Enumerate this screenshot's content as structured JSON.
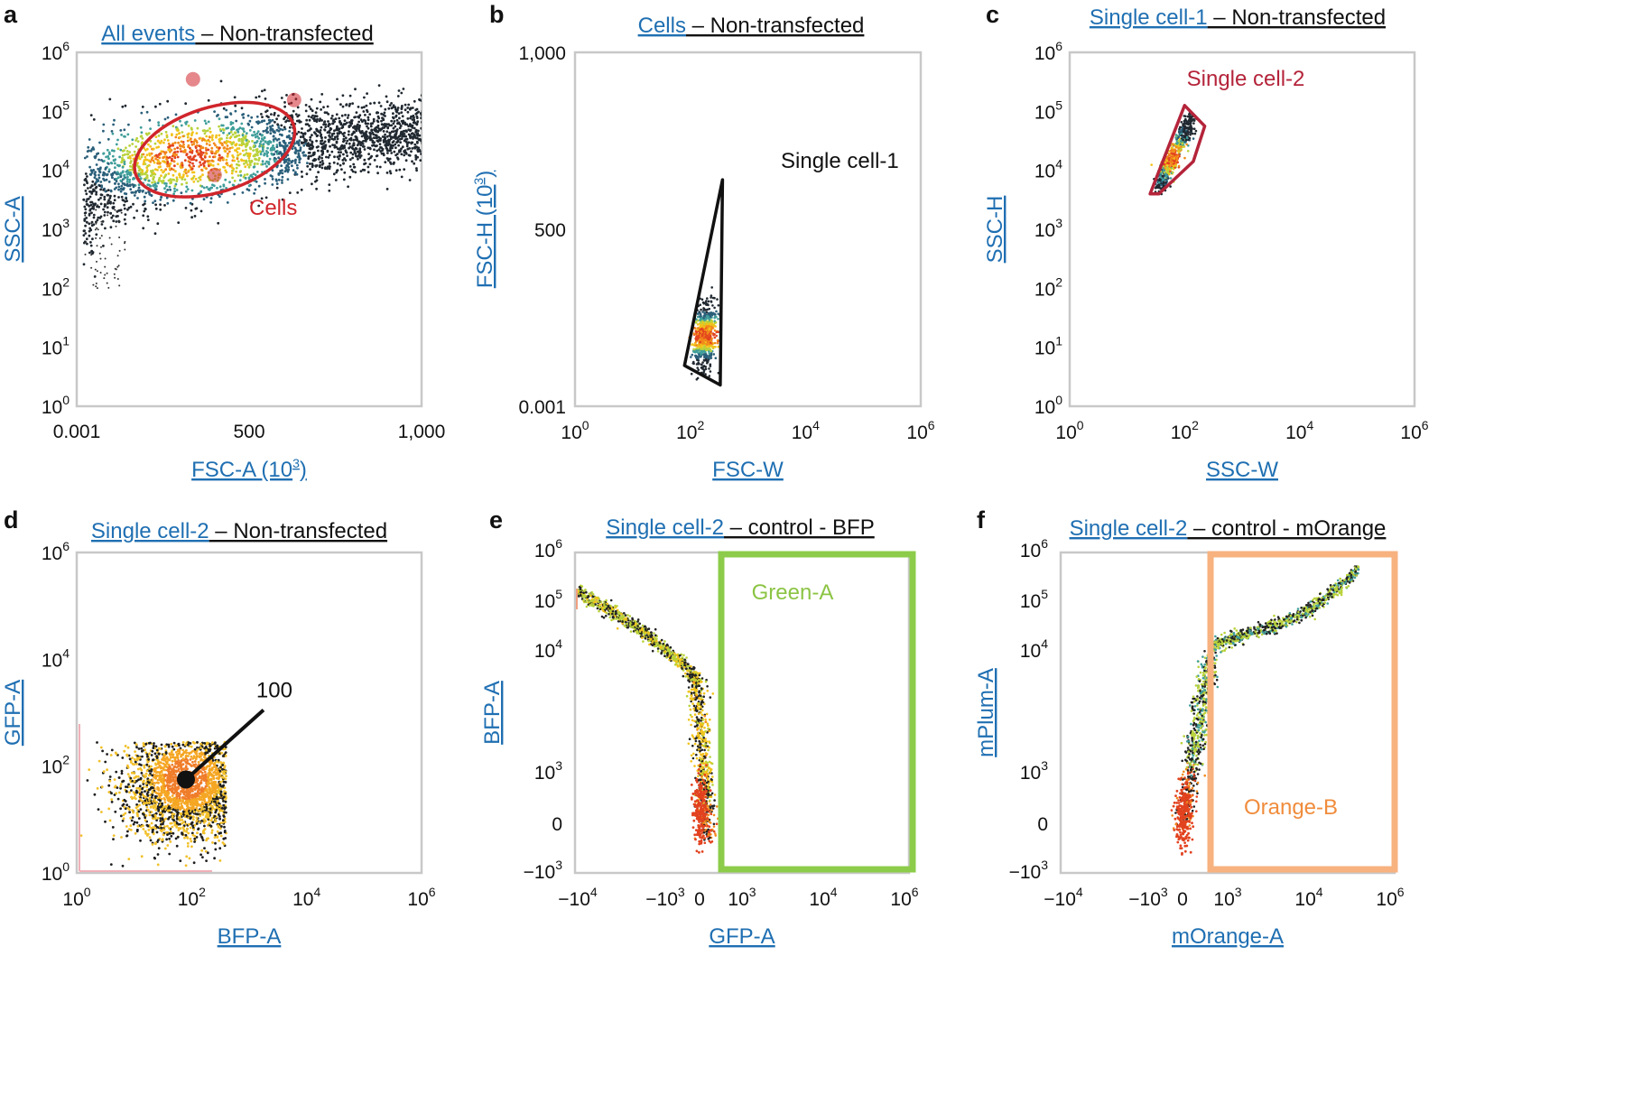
{
  "colors": {
    "axis_label": "#1f6fb2",
    "gate_red": "#d0252b",
    "gate_crimson": "#b4243a",
    "gate_green": "#8ccc4a",
    "gate_orange": "#f7b27f",
    "orange_text": "#f08c3c",
    "green_text": "#8cc444"
  },
  "chart_data": [
    {
      "panel": "a",
      "type": "scatter",
      "title_gate": "All events",
      "title_rest": "– Non-transfected",
      "xlabel": "FSC-A (10",
      "xlabel_sup": "3",
      "xlabel_end": ")",
      "ylabel": "SSC-A",
      "xscale": "linear",
      "xlim": [
        0,
        1000
      ],
      "x_ticks": [
        {
          "v": 0,
          "label": "0.001"
        },
        {
          "v": 500,
          "label": "500"
        },
        {
          "v": 1000,
          "label": "1,000"
        }
      ],
      "yscale": "log",
      "ylim": [
        0,
        6
      ],
      "y_ticks": [
        {
          "v": 0,
          "base": "10",
          "exp": "0"
        },
        {
          "v": 1,
          "base": "10",
          "exp": "1"
        },
        {
          "v": 2,
          "base": "10",
          "exp": "2"
        },
        {
          "v": 3,
          "base": "10",
          "exp": "3"
        },
        {
          "v": 4,
          "base": "10",
          "exp": "4"
        },
        {
          "v": 5,
          "base": "10",
          "exp": "5"
        },
        {
          "v": 6,
          "base": "10",
          "exp": "6"
        }
      ],
      "gate": {
        "name": "Cells",
        "shape": "ellipse",
        "center": [
          400,
          4.35
        ],
        "semi_axes_data": [
          240,
          0.72
        ],
        "color": "#d0252b"
      },
      "population": "main population curving from ~(40, 3.0) to (1000, 4.8), densest around (350, 4.2)"
    },
    {
      "panel": "b",
      "type": "scatter",
      "title_gate": "Cells",
      "title_rest": "– Non-transfected",
      "xlabel": "FSC-W",
      "xlabel_sup": "",
      "xlabel_end": "",
      "ylabel": "FSC-H (10",
      "ylabel_sup": "3",
      "ylabel_end": ")",
      "xscale": "log",
      "xlim": [
        0,
        6
      ],
      "x_ticks": [
        {
          "v": 0,
          "base": "10",
          "exp": "0"
        },
        {
          "v": 2,
          "base": "10",
          "exp": "2"
        },
        {
          "v": 4,
          "base": "10",
          "exp": "4"
        },
        {
          "v": 6,
          "base": "10",
          "exp": "6"
        }
      ],
      "yscale": "linear",
      "ylim": [
        0,
        1000
      ],
      "y_ticks": [
        {
          "v": 0,
          "label": "0.001"
        },
        {
          "v": 500,
          "label": "500"
        },
        {
          "v": 1000,
          "label": "1,000"
        }
      ],
      "gate": {
        "name": "Single cell-1",
        "shape": "polygon",
        "vertices": [
          [
            2.56,
            640
          ],
          [
            1.9,
            115
          ],
          [
            2.52,
            60
          ]
        ],
        "color": "#111111"
      },
      "population": "narrow cluster near (2.25, 200)"
    },
    {
      "panel": "c",
      "type": "scatter",
      "title_gate": "Single cell-1",
      "title_rest": "– Non-transfected",
      "xlabel": "SSC-W",
      "xlabel_sup": "",
      "xlabel_end": "",
      "ylabel": "SSC-H",
      "xscale": "log",
      "xlim": [
        0,
        6
      ],
      "x_ticks": [
        {
          "v": 0,
          "base": "10",
          "exp": "0"
        },
        {
          "v": 2,
          "base": "10",
          "exp": "2"
        },
        {
          "v": 4,
          "base": "10",
          "exp": "4"
        },
        {
          "v": 6,
          "base": "10",
          "exp": "6"
        }
      ],
      "yscale": "log",
      "ylim": [
        0,
        6
      ],
      "y_ticks": [
        {
          "v": 0,
          "base": "10",
          "exp": "0"
        },
        {
          "v": 1,
          "base": "10",
          "exp": "1"
        },
        {
          "v": 2,
          "base": "10",
          "exp": "2"
        },
        {
          "v": 3,
          "base": "10",
          "exp": "3"
        },
        {
          "v": 4,
          "base": "10",
          "exp": "4"
        },
        {
          "v": 5,
          "base": "10",
          "exp": "5"
        },
        {
          "v": 6,
          "base": "10",
          "exp": "6"
        }
      ],
      "gate": {
        "name": "Single cell-2",
        "shape": "polygon",
        "vertices": [
          [
            1.4,
            3.6
          ],
          [
            2.0,
            5.1
          ],
          [
            2.35,
            4.75
          ],
          [
            2.15,
            4.15
          ],
          [
            1.55,
            3.6
          ]
        ],
        "color": "#b4243a"
      },
      "population": "elongated cluster from (1.5, 3.7) to (2.1, 4.9)"
    },
    {
      "panel": "d",
      "type": "scatter",
      "title_gate": "Single cell-2",
      "title_rest": "– Non-transfected",
      "xlabel": "BFP-A",
      "xlabel_sup": "",
      "xlabel_end": "",
      "ylabel": "GFP-A",
      "xscale": "log",
      "xlim": [
        0,
        6
      ],
      "x_ticks": [
        {
          "v": 0,
          "base": "10",
          "exp": "0"
        },
        {
          "v": 2,
          "base": "10",
          "exp": "2"
        },
        {
          "v": 4,
          "base": "10",
          "exp": "4"
        },
        {
          "v": 6,
          "base": "10",
          "exp": "6"
        }
      ],
      "yscale": "log",
      "ylim": [
        0,
        6
      ],
      "y_ticks": [
        {
          "v": 0,
          "base": "10",
          "exp": "0"
        },
        {
          "v": 2,
          "base": "10",
          "exp": "2"
        },
        {
          "v": 4,
          "base": "10",
          "exp": "4"
        },
        {
          "v": 6,
          "base": "10",
          "exp": "6"
        }
      ],
      "annotation": {
        "text": "100",
        "point": [
          1.9,
          1.75
        ],
        "line_end": [
          3.25,
          3.05
        ]
      },
      "population": "blob spanning x 0-2.5, y 0.2-2.4, densest near (1.9, 1.75)"
    },
    {
      "panel": "e",
      "type": "scatter",
      "title_gate": "Single cell-2",
      "title_rest": "– control - BFP",
      "xlabel": "GFP-A",
      "xlabel_sup": "",
      "xlabel_end": "",
      "ylabel": "BFP-A",
      "xscale": "biexponential",
      "ylim_note": "biexponential",
      "x_ticks": [
        {
          "base": "−10",
          "exp": "4"
        },
        {
          "base": "−10",
          "exp": "3"
        },
        {
          "base": "0",
          "exp": ""
        },
        {
          "base": "10",
          "exp": "3"
        },
        {
          "base": "10",
          "exp": "4"
        },
        {
          "base": "10",
          "exp": "6"
        }
      ],
      "y_ticks": [
        {
          "base": "−10",
          "exp": "3"
        },
        {
          "base": "0",
          "exp": ""
        },
        {
          "base": "10",
          "exp": "3"
        },
        {
          "base": "10",
          "exp": "4"
        },
        {
          "base": "10",
          "exp": "5"
        },
        {
          "base": "10",
          "exp": "6"
        }
      ],
      "gate": {
        "name": "Green-A",
        "shape": "rectangle",
        "x_range": [
          "just above 0",
          "10^6"
        ],
        "y_range": [
          "−10^3",
          "10^6"
        ],
        "color": "#8ccc4a"
      },
      "population": "curve from top-left (−10^4, 10^5) bending down to a tight cluster at (0, 0)"
    },
    {
      "panel": "f",
      "type": "scatter",
      "title_gate": "Single cell-2",
      "title_rest": "– control - mOrange",
      "xlabel": "mOrange-A",
      "xlabel_sup": "",
      "xlabel_end": "",
      "ylabel": "mPlum-A",
      "xscale": "biexponential",
      "x_ticks": [
        {
          "base": "−10",
          "exp": "4"
        },
        {
          "base": "−10",
          "exp": "3"
        },
        {
          "base": "0",
          "exp": ""
        },
        {
          "base": "10",
          "exp": "3"
        },
        {
          "base": "10",
          "exp": "4"
        },
        {
          "base": "10",
          "exp": "6"
        }
      ],
      "y_ticks": [
        {
          "base": "−10",
          "exp": "3"
        },
        {
          "base": "0",
          "exp": ""
        },
        {
          "base": "10",
          "exp": "3"
        },
        {
          "base": "10",
          "exp": "4"
        },
        {
          "base": "10",
          "exp": "5"
        },
        {
          "base": "10",
          "exp": "6"
        }
      ],
      "gate": {
        "name": "Orange-B",
        "shape": "rectangle",
        "x_range": [
          "just above 0",
          "10^6"
        ],
        "y_range": [
          "−10^3",
          "10^6"
        ],
        "color": "#f7b27f"
      },
      "population": "tight cluster at (0, 0) rising steeply then sweeping right to (10^4.5, 10^5.5)"
    }
  ]
}
